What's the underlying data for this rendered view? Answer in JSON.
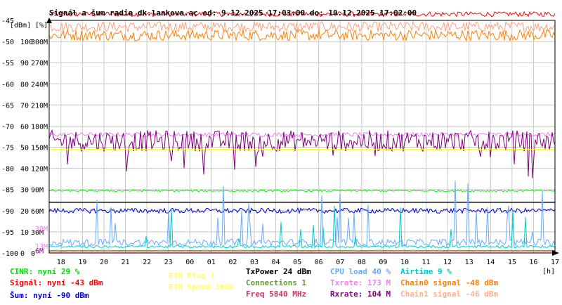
{
  "chart_data": {
    "type": "line",
    "title": "Signál a šum radia dk.lankova.ac od: 9.12.2025 17:03:00 do: 10.12.2025 17:02:00",
    "ylabel_left": "[dBm]",
    "ylabel_mid": "[%]",
    "xlabel": "[h]",
    "x_ticks": [
      "18",
      "19",
      "20",
      "21",
      "22",
      "23",
      "00",
      "01",
      "02",
      "03",
      "04",
      "05",
      "06",
      "07",
      "08",
      "09",
      "10",
      "11",
      "12",
      "13",
      "14",
      "15",
      "16",
      "17"
    ],
    "y_ticks_dbm": [
      "-45",
      "-50",
      "-55",
      "-60",
      "-65",
      "-70",
      "-75",
      "-80",
      "-85",
      "-90",
      "-95",
      "-100"
    ],
    "y_ticks_pct": [
      "",
      "100",
      "90",
      "80",
      "70",
      "60",
      "50",
      "40",
      "30",
      "20",
      "10",
      "0"
    ],
    "y_ticks_rate": [
      "",
      "300M",
      "270M",
      "240M",
      "210M",
      "180M",
      "150M",
      "120M",
      "90M",
      "60M",
      "30M",
      "0"
    ],
    "side_labels": [
      {
        "text": "39M",
        "color": "#ee82ee",
        "dbm": -94.2
      },
      {
        "text": "13M",
        "color": "#ee82ee",
        "dbm": -98.3
      },
      {
        "text": "6M",
        "color": "#800080",
        "dbm": -99.4
      }
    ],
    "ylim_dbm": [
      -100,
      -45
    ],
    "grid": true,
    "legend_placement": "bottom",
    "series": [
      {
        "name": "Signál",
        "color": "#ff0000",
        "level_dbm": -43.5,
        "noise": 0.6
      },
      {
        "name": "Chain1 signal",
        "color": "#ffa07a",
        "level_dbm": -46.5,
        "noise": 1.2
      },
      {
        "name": "Chain0 signal",
        "color": "#ff8000",
        "level_dbm": -48.5,
        "noise": 1.3
      },
      {
        "name": "Txrate",
        "color": "#ee82ee",
        "level_dbm": -72.0,
        "noise": 0.5
      },
      {
        "name": "Rxrate",
        "color": "#800080",
        "level_dbm": -73.5,
        "noise": 2.5
      },
      {
        "name": "ETH Speed",
        "color": "#ffff00",
        "level_dbm": -75.5,
        "noise": 0.1
      },
      {
        "name": "CINR",
        "color": "#00ee00",
        "level_dbm": -85.3,
        "noise": 0.2
      },
      {
        "name": "TxPower",
        "color": "#000000",
        "level_dbm": -88.0,
        "noise": 0
      },
      {
        "name": "Šum",
        "color": "#0000cc",
        "level_dbm": -90.0,
        "noise": 0.6
      },
      {
        "name": "CPU load",
        "color": "#66aaff",
        "level_dbm": -97.5,
        "noise": 0.8
      },
      {
        "name": "Airtime",
        "color": "#00cccc",
        "level_dbm": -98.5,
        "noise": 0.3
      },
      {
        "name": "Connections",
        "color": "#669933",
        "level_dbm": -99.4,
        "noise": 0.05
      },
      {
        "name": "Freq",
        "color": "#cc3366",
        "level_dbm": -99.7,
        "noise": 0
      }
    ]
  },
  "legend": [
    {
      "text": "CINR: nyní 29 %",
      "color": "#00dd00"
    },
    {
      "text": "Signál: nyní -43 dBm",
      "color": "#ff0000"
    },
    {
      "text": "Šum: nyní -90 dBm",
      "color": "#0000cc"
    },
    {
      "text": "ETH Plug 1",
      "color": "#ffff66"
    },
    {
      "text": "ETH Speed 1000",
      "color": "#ffff66"
    },
    {
      "text": "TxPower 24 dBm",
      "color": "#000000"
    },
    {
      "text": "Connections 1",
      "color": "#669933"
    },
    {
      "text": "Freq 5840 MHz",
      "color": "#cc3366"
    },
    {
      "text": "CPU load 40 %",
      "color": "#66aaff"
    },
    {
      "text": "Txrate: 173 M",
      "color": "#ee82ee"
    },
    {
      "text": "Rxrate: 104 M",
      "color": "#800080"
    },
    {
      "text": "Airtime 9 %",
      "color": "#00cccc"
    },
    {
      "text": "Chain0 signal -48 dBm",
      "color": "#ff8000"
    },
    {
      "text": "Chain1 signal -46 dBm",
      "color": "#ffb090"
    }
  ]
}
